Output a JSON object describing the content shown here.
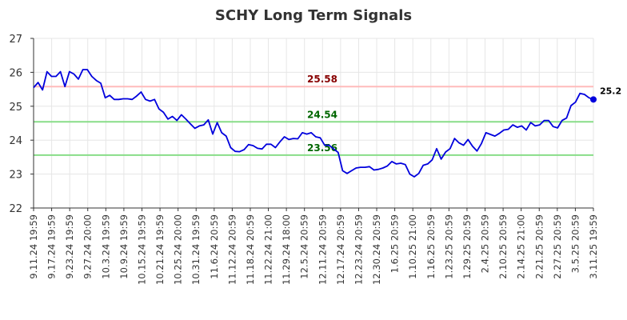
{
  "chart_data": {
    "type": "line",
    "title": "SCHY Long Term Signals",
    "xlabel": "",
    "ylabel": "",
    "ylim": [
      22,
      27
    ],
    "yticks": [
      22,
      23,
      24,
      25,
      26,
      27
    ],
    "grid": true,
    "legend": "none",
    "x_tick_labels": [
      "9.11.24 19:59",
      "9.17.24 19:59",
      "9.23.24 19:59",
      "9.27.24 20:00",
      "10.3.24 19:59",
      "10.9.24 19:59",
      "10.15.24 19:59",
      "10.21.24 19:59",
      "10.25.24 20:00",
      "10.31.24 19:59",
      "11.6.24 20:59",
      "11.12.24 20:59",
      "11.18.24 20:59",
      "11.22.24 21:00",
      "11.29.24 18:00",
      "12.5.24 20:59",
      "12.11.24 20:59",
      "12.17.24 20:59",
      "12.23.24 20:59",
      "12.30.24 20:59",
      "1.6.25 20:59",
      "1.10.25 21:00",
      "1.16.25 20:59",
      "1.23.25 20:59",
      "1.29.25 20:59",
      "2.4.25 20:59",
      "2.10.25 20:59",
      "2.14.25 21:00",
      "2.21.25 20:59",
      "2.27.25 20:59",
      "3.5.25 20:59",
      "3.11.25 19:59"
    ],
    "series": [
      {
        "values": [
          25.55,
          25.7,
          25.48,
          26.02,
          25.88,
          25.88,
          26.02,
          25.58,
          26.02,
          25.95,
          25.8,
          26.08,
          26.08,
          25.88,
          25.76,
          25.68,
          25.25,
          25.32,
          25.2,
          25.2,
          25.22,
          25.22,
          25.2,
          25.3,
          25.42,
          25.2,
          25.15,
          25.2,
          24.92,
          24.82,
          24.62,
          24.7,
          24.58,
          24.75,
          24.62,
          24.48,
          24.35,
          24.42,
          24.45,
          24.6,
          24.18,
          24.52,
          24.22,
          24.12,
          23.78,
          23.67,
          23.66,
          23.72,
          23.87,
          23.84,
          23.76,
          23.74,
          23.88,
          23.88,
          23.78,
          23.95,
          24.1,
          24.02,
          24.05,
          24.04,
          24.22,
          24.18,
          24.22,
          24.1,
          24.07,
          23.85,
          23.85,
          23.74,
          23.64,
          23.1,
          23.02,
          23.1,
          23.18,
          23.2,
          23.2,
          23.22,
          23.12,
          23.14,
          23.18,
          23.24,
          23.37,
          23.3,
          23.32,
          23.28,
          23.0,
          22.92,
          23.02,
          23.26,
          23.3,
          23.42,
          23.75,
          23.44,
          23.65,
          23.75,
          24.05,
          23.92,
          23.85,
          24.02,
          23.82,
          23.68,
          23.9,
          24.22,
          24.17,
          24.12,
          24.2,
          24.3,
          24.32,
          24.45,
          24.38,
          24.42,
          24.3,
          24.52,
          24.42,
          24.45,
          24.58,
          24.58,
          24.4,
          24.36,
          24.58,
          24.65,
          25.02,
          25.12,
          25.38,
          25.35,
          25.25,
          25.2
        ],
        "color": "#0000dd"
      }
    ],
    "levels": [
      {
        "value": 25.58,
        "label": "25.58",
        "line_color": "#ffbbbb",
        "text_color": "#880000"
      },
      {
        "value": 24.54,
        "label": "24.54",
        "line_color": "#88dd88",
        "text_color": "#006600"
      },
      {
        "value": 23.56,
        "label": "23.56",
        "line_color": "#88dd88",
        "text_color": "#006600"
      }
    ],
    "last_value_label": "25.2"
  }
}
